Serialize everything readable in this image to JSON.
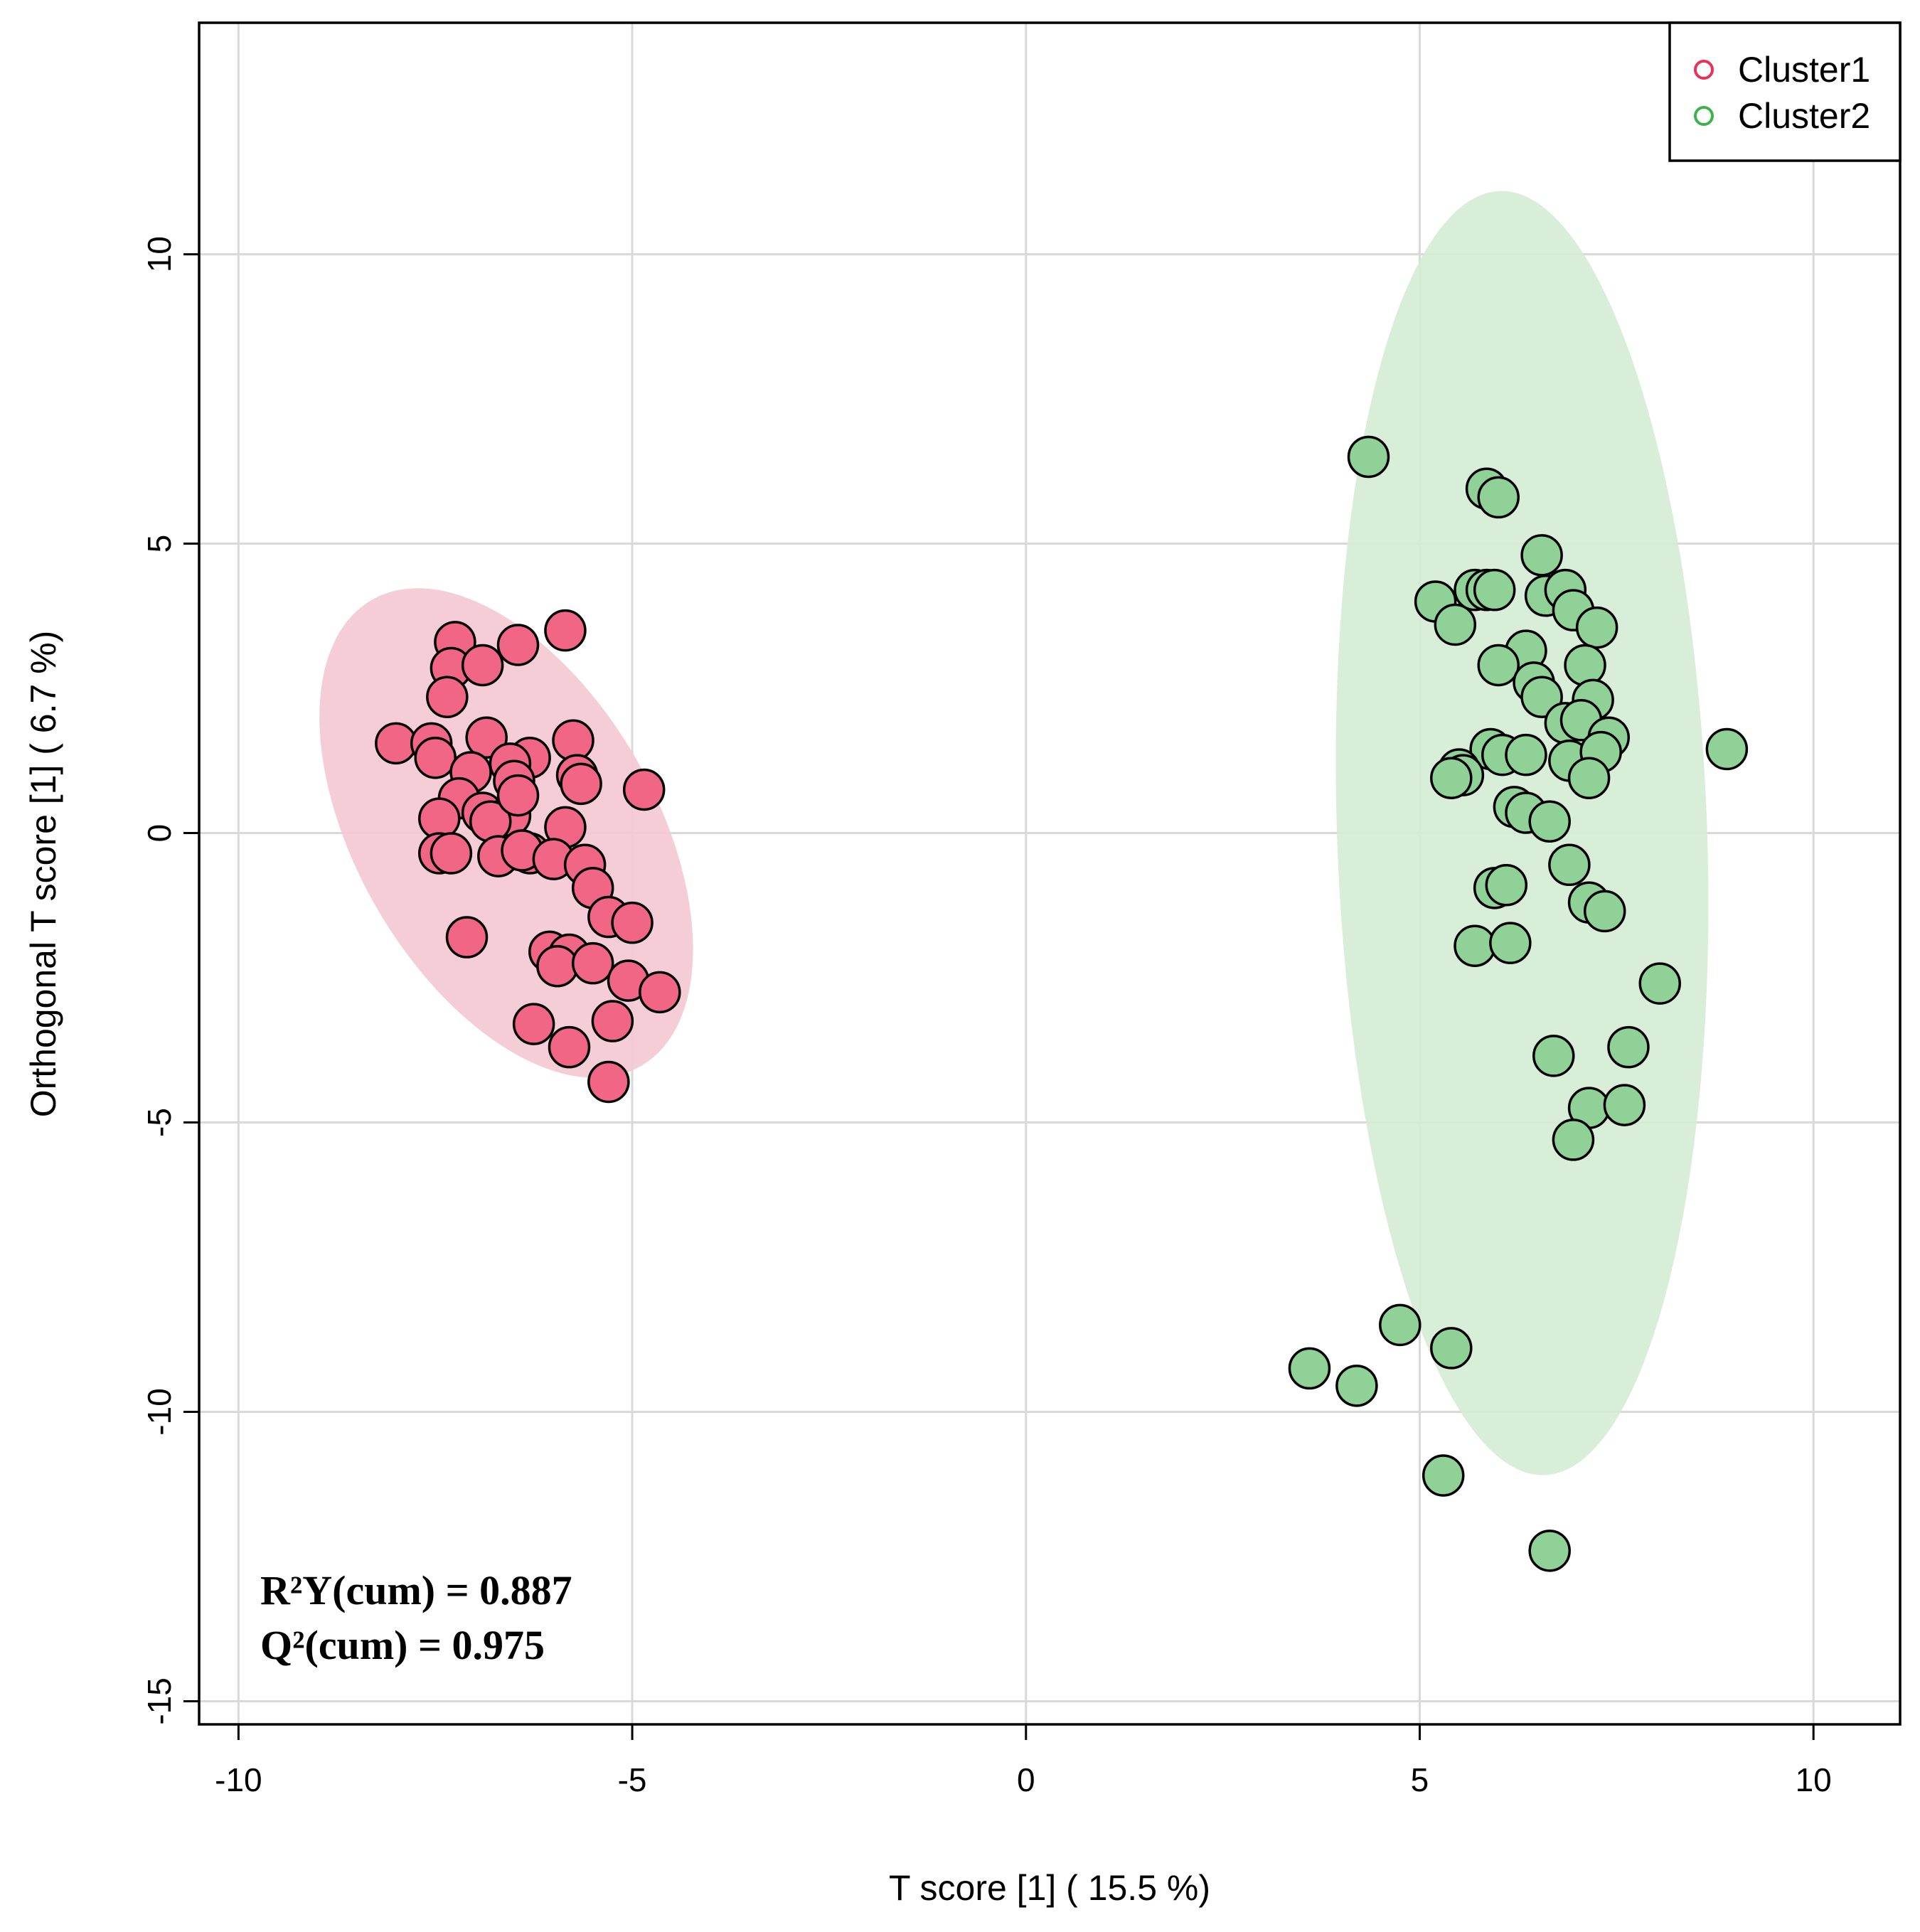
{
  "chart_data": {
    "type": "scatter",
    "title": "",
    "xlabel": "T score [1] ( 15.5 %)",
    "ylabel": "Orthogonal T score [1] ( 6.7 %)",
    "xlim": [
      -10.5,
      11.1
    ],
    "ylim": [
      -15.4,
      14.0
    ],
    "xticks": [
      -10,
      -5,
      0,
      5,
      10
    ],
    "yticks": [
      -15,
      -10,
      -5,
      0,
      5,
      10
    ],
    "xtick_labels": [
      "-10",
      "-5",
      "0",
      "5",
      "10"
    ],
    "ytick_labels": [
      "-15",
      "-10",
      "-5",
      "0",
      "5",
      "10"
    ],
    "grid": true,
    "legend": "top-right",
    "stats": [
      "R²Y(cum) = 0.887",
      "Q²(cum) = 0.975"
    ],
    "series": [
      {
        "name": "Cluster1",
        "color": "#e8325a",
        "fill": "#f06684",
        "ellipse": {
          "cx": -6.6,
          "cy": 0.0,
          "width_x": 3.8,
          "height_y": 9.3,
          "angle_deg": 30,
          "fill": "#f3c8d3"
        },
        "x": [
          -5.85,
          -7.25,
          -6.45,
          -7.3,
          -6.9,
          -7.35,
          -8.0,
          -7.55,
          -6.85,
          -6.3,
          -5.75,
          -7.5,
          -6.55,
          -5.7,
          -4.85,
          -7.05,
          -6.5,
          -5.65,
          -7.2,
          -6.9,
          -6.55,
          -7.45,
          -6.8,
          -6.45,
          -5.85,
          -7.45,
          -7.3,
          -6.7,
          -6.3,
          -6.4,
          -6.0,
          -5.6,
          -5.5,
          -5.3,
          -5.0,
          -7.1,
          -6.05,
          -5.8,
          -5.95,
          -5.5,
          -5.05,
          -4.65,
          -6.25,
          -5.25,
          -5.8,
          -5.3
        ],
        "y": [
          3.5,
          3.3,
          3.25,
          2.85,
          2.9,
          2.35,
          1.55,
          1.55,
          1.65,
          1.3,
          1.6,
          1.3,
          1.2,
          1.0,
          0.75,
          1.05,
          0.9,
          0.85,
          0.6,
          0.35,
          0.3,
          0.25,
          0.2,
          0.65,
          0.1,
          -0.35,
          -0.35,
          -0.4,
          -0.35,
          -0.3,
          -0.45,
          -0.55,
          -0.95,
          -1.45,
          -1.55,
          -1.8,
          -2.05,
          -2.1,
          -2.3,
          -2.25,
          -2.55,
          -2.75,
          -3.3,
          -3.25,
          -3.7,
          -4.3
        ]
      },
      {
        "name": "Cluster2",
        "color": "#3cb44b",
        "fill": "#8fd197",
        "ellipse": {
          "cx": 6.3,
          "cy": 0.0,
          "width_x": 4.7,
          "height_y": 22.2,
          "angle_deg": 2,
          "fill": "#d4ecd4"
        },
        "x": [
          4.35,
          5.85,
          6.0,
          6.55,
          5.2,
          5.45,
          5.7,
          5.85,
          5.95,
          6.6,
          6.85,
          6.95,
          7.25,
          6.35,
          6.0,
          7.1,
          6.45,
          6.55,
          7.2,
          6.85,
          7.05,
          7.4,
          5.9,
          6.05,
          5.5,
          5.55,
          5.4,
          6.35,
          6.9,
          7.3,
          7.15,
          8.9,
          6.2,
          6.35,
          6.65,
          6.9,
          5.95,
          6.1,
          7.15,
          7.35,
          5.7,
          6.15,
          8.05,
          6.7,
          7.65,
          7.15,
          7.6,
          6.95,
          4.75,
          5.4,
          3.6,
          4.2,
          5.3,
          6.65
        ],
        "y": [
          6.5,
          5.95,
          5.8,
          4.8,
          4.0,
          3.6,
          4.2,
          4.2,
          4.2,
          4.1,
          4.2,
          3.85,
          3.55,
          3.15,
          2.9,
          2.9,
          2.6,
          2.35,
          2.3,
          1.9,
          1.95,
          1.65,
          1.45,
          1.35,
          1.1,
          1.0,
          0.95,
          1.35,
          1.25,
          1.4,
          0.95,
          1.45,
          0.45,
          0.35,
          0.2,
          -0.55,
          -0.95,
          -0.9,
          -1.2,
          -1.35,
          -1.95,
          -1.9,
          -2.6,
          -3.85,
          -3.7,
          -4.75,
          -4.7,
          -5.3,
          -8.5,
          -8.9,
          -9.25,
          -9.55,
          -11.1,
          -12.4
        ]
      }
    ]
  }
}
